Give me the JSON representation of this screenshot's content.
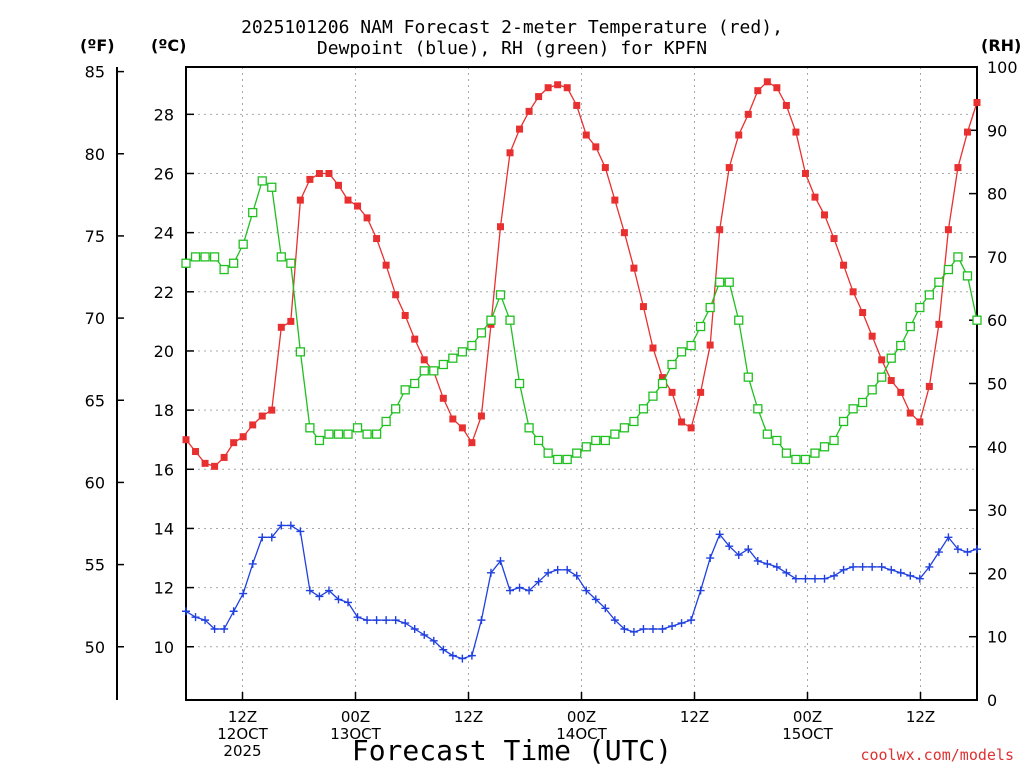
{
  "title": {
    "line1": "2025101206 NAM Forecast 2-meter Temperature (red),",
    "line2": "Dewpoint (blue), RH (green) for KPFN"
  },
  "units": {
    "fahrenheit": "(ºF)",
    "celsius": "(ºC)",
    "rh": "(RH)"
  },
  "footer": {
    "xlabel": "Forecast Time (UTC)",
    "credit": "coolwx.com/models"
  },
  "colors": {
    "temperature": "#e83030",
    "dewpoint": "#2040e0",
    "rh": "#20c020",
    "grid": "#aaaaaa"
  },
  "chart_data": {
    "type": "line",
    "title": "2025101206 NAM Forecast 2-meter Temperature (red), Dewpoint (blue), RH (green) for KPFN",
    "xlabel": "Forecast Time (UTC)",
    "x_unit": "hours since 2025-10-12 06Z",
    "x_range": [
      0,
      84
    ],
    "x_ticks": [
      {
        "hour": 6,
        "labels": [
          "12Z",
          "12OCT",
          "2025"
        ]
      },
      {
        "hour": 18,
        "labels": [
          "00Z",
          "13OCT"
        ]
      },
      {
        "hour": 30,
        "labels": [
          "12Z"
        ]
      },
      {
        "hour": 42,
        "labels": [
          "00Z",
          "14OCT"
        ]
      },
      {
        "hour": 54,
        "labels": [
          "12Z"
        ]
      },
      {
        "hour": 66,
        "labels": [
          "00Z",
          "15OCT"
        ]
      },
      {
        "hour": 78,
        "labels": [
          "12Z"
        ]
      }
    ],
    "y_celsius": {
      "range": [
        8.2,
        29.6
      ],
      "ticks": [
        10,
        12,
        14,
        16,
        18,
        20,
        22,
        24,
        26,
        28
      ]
    },
    "y_fahrenheit": {
      "range": [
        46.76,
        85.28
      ],
      "ticks": [
        50,
        55,
        60,
        65,
        70,
        75,
        80,
        85
      ]
    },
    "y_rh": {
      "range": [
        0,
        100
      ],
      "ticks": [
        0,
        10,
        20,
        30,
        40,
        50,
        60,
        70,
        80,
        90,
        100
      ]
    },
    "grid": true,
    "series": [
      {
        "name": "Temperature (red)",
        "unit": "C",
        "marker": "filled-square",
        "values": [
          17.0,
          16.6,
          16.2,
          16.1,
          16.4,
          16.9,
          17.1,
          17.5,
          17.8,
          18.0,
          20.8,
          21.0,
          25.1,
          25.8,
          26.0,
          26.0,
          25.6,
          25.1,
          24.9,
          24.5,
          23.8,
          22.9,
          21.9,
          21.2,
          20.4,
          19.7,
          19.3,
          18.4,
          17.7,
          17.4,
          16.9,
          17.8,
          20.9,
          24.2,
          26.7,
          27.5,
          28.1,
          28.6,
          28.9,
          29.0,
          28.9,
          28.3,
          27.3,
          26.9,
          26.2,
          25.1,
          24.0,
          22.8,
          21.5,
          20.1,
          19.1,
          18.6,
          17.6,
          17.4,
          18.6,
          20.2,
          24.1,
          26.2,
          27.3,
          28.0,
          28.8,
          29.1,
          28.9,
          28.3,
          27.4,
          26.0,
          25.2,
          24.6,
          23.8,
          22.9,
          22.0,
          21.3,
          20.5,
          19.7,
          19.0,
          18.6,
          17.9,
          17.6,
          18.8,
          20.9,
          24.1,
          26.2,
          27.4,
          28.4
        ]
      },
      {
        "name": "Dewpoint (blue)",
        "unit": "C",
        "marker": "plus",
        "values": [
          11.2,
          11.0,
          10.9,
          10.6,
          10.6,
          11.2,
          11.8,
          12.8,
          13.7,
          13.7,
          14.1,
          14.1,
          13.9,
          11.9,
          11.7,
          11.9,
          11.6,
          11.5,
          11.0,
          10.9,
          10.9,
          10.9,
          10.9,
          10.8,
          10.6,
          10.4,
          10.2,
          9.9,
          9.7,
          9.6,
          9.7,
          10.9,
          12.5,
          12.9,
          11.9,
          12.0,
          11.9,
          12.2,
          12.5,
          12.6,
          12.6,
          12.4,
          11.9,
          11.6,
          11.3,
          10.9,
          10.6,
          10.5,
          10.6,
          10.6,
          10.6,
          10.7,
          10.8,
          10.9,
          11.9,
          13.0,
          13.8,
          13.4,
          13.1,
          13.3,
          12.9,
          12.8,
          12.7,
          12.5,
          12.3,
          12.3,
          12.3,
          12.3,
          12.4,
          12.6,
          12.7,
          12.7,
          12.7,
          12.7,
          12.6,
          12.5,
          12.4,
          12.3,
          12.7,
          13.2,
          13.7,
          13.3,
          13.2,
          13.3
        ]
      },
      {
        "name": "RH (green)",
        "unit": "%",
        "marker": "open-square",
        "values": [
          69,
          70,
          70,
          70,
          68,
          69,
          72,
          77,
          82,
          81,
          70,
          69,
          55,
          43,
          41,
          42,
          42,
          42,
          43,
          42,
          42,
          44,
          46,
          49,
          50,
          52,
          52,
          53,
          54,
          55,
          56,
          58,
          60,
          64,
          60,
          50,
          43,
          41,
          39,
          38,
          38,
          39,
          40,
          41,
          41,
          42,
          43,
          44,
          46,
          48,
          50,
          53,
          55,
          56,
          59,
          62,
          66,
          66,
          60,
          51,
          46,
          42,
          41,
          39,
          38,
          38,
          39,
          40,
          41,
          44,
          46,
          47,
          49,
          51,
          54,
          56,
          59,
          62,
          64,
          66,
          68,
          70,
          67,
          60
        ]
      }
    ]
  }
}
